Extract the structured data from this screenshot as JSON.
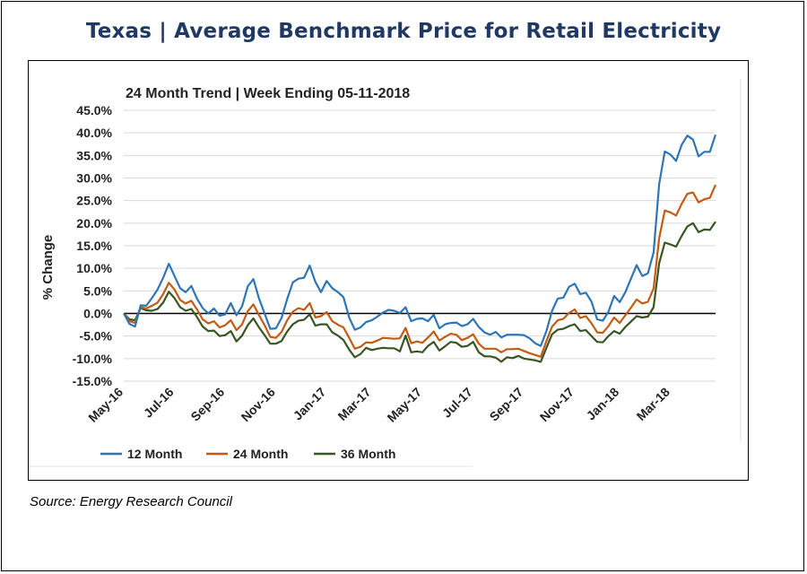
{
  "page": {
    "title": "Texas | Average Benchmark Price for Retail Electricity",
    "source": "Source: Energy Research Council"
  },
  "chart_data": {
    "type": "line",
    "title": "24 Month Trend | Week Ending 05-11-2018",
    "xlabel": "",
    "ylabel": "% Change",
    "ylim": [
      -15,
      45
    ],
    "yticks": [
      -15,
      -10,
      -5,
      0,
      5,
      10,
      15,
      20,
      25,
      30,
      35,
      40,
      45
    ],
    "ytick_labels": [
      "-15.0%",
      "-10.0%",
      "-5.0%",
      "0.0%",
      "5.0%",
      "10.0%",
      "15.0%",
      "20.0%",
      "25.0%",
      "30.0%",
      "35.0%",
      "40.0%",
      "45.0%"
    ],
    "x_tick_labels": [
      "May-16",
      "Jul-16",
      "Sep-16",
      "Nov-16",
      "Jan-17",
      "Mar-17",
      "May-17",
      "Jul-17",
      "Sep-17",
      "Nov-17",
      "Jan-18",
      "Mar-18"
    ],
    "x_tick_weeks": [
      0,
      9,
      18,
      27,
      36,
      44,
      53,
      62,
      71,
      80,
      88,
      97
    ],
    "grid": "horizontal",
    "legend_position": "bottom-left",
    "series": [
      {
        "name": "12 Month",
        "color": "#2e75b6",
        "values": [
          0,
          -2.3,
          -2.9,
          1.8,
          1.7,
          3.4,
          5.3,
          7.9,
          11.0,
          8.3,
          5.6,
          4.7,
          6.1,
          3.3,
          1.2,
          0.0,
          1.1,
          -0.5,
          -0.2,
          2.3,
          -0.4,
          1.6,
          6.0,
          7.6,
          3.3,
          0.0,
          -3.4,
          -3.3,
          -1.0,
          3.2,
          6.9,
          7.7,
          7.9,
          10.6,
          7.0,
          4.7,
          7.2,
          5.6,
          4.7,
          3.6,
          -0.9,
          -3.6,
          -3.1,
          -1.9,
          -1.5,
          -0.7,
          0.2,
          0.8,
          0.6,
          0.1,
          1.4,
          -1.7,
          -1.2,
          -1.1,
          -1.7,
          -0.3,
          -3.3,
          -2.4,
          -2.1,
          -2.0,
          -2.8,
          -2.4,
          -1.2,
          -3.0,
          -4.2,
          -4.7,
          -4.1,
          -5.3,
          -4.7,
          -4.7,
          -4.7,
          -4.8,
          -5.5,
          -6.6,
          -7.2,
          -3.9,
          0.6,
          3.3,
          3.5,
          5.9,
          6.6,
          4.3,
          4.6,
          2.6,
          -1.3,
          -1.6,
          0.4,
          3.9,
          2.5,
          4.7,
          7.7,
          10.7,
          8.3,
          8.9,
          13.5,
          28.6,
          35.9,
          35.2,
          33.8,
          37.4,
          39.4,
          38.5,
          34.8,
          35.8,
          35.8,
          39.6
        ]
      },
      {
        "name": "24 Month",
        "color": "#c55a11",
        "values": [
          0,
          -1.7,
          -2.1,
          1.4,
          1.1,
          1.7,
          2.4,
          4.3,
          6.8,
          5.3,
          3.0,
          2.2,
          2.8,
          0.9,
          -1.3,
          -2.2,
          -1.7,
          -3.1,
          -2.6,
          -1.5,
          -3.7,
          -2.4,
          0.5,
          2.0,
          -0.4,
          -2.6,
          -5.2,
          -5.4,
          -4.1,
          -1.5,
          0.4,
          1.2,
          0.8,
          2.3,
          -0.9,
          -0.6,
          0.3,
          -1.7,
          -2.5,
          -3.1,
          -5.4,
          -7.8,
          -7.4,
          -6.4,
          -6.5,
          -6.0,
          -5.4,
          -5.5,
          -5.6,
          -5.5,
          -3.2,
          -6.6,
          -6.2,
          -6.5,
          -5.3,
          -4.0,
          -6.0,
          -5.2,
          -4.5,
          -4.7,
          -5.9,
          -5.4,
          -4.6,
          -6.7,
          -7.8,
          -7.8,
          -7.8,
          -8.6,
          -7.9,
          -7.9,
          -7.8,
          -8.3,
          -8.8,
          -9.2,
          -9.6,
          -6.1,
          -2.9,
          -1.5,
          -1.2,
          0.1,
          0.9,
          -1.0,
          -0.6,
          -2.2,
          -4.2,
          -4.3,
          -2.8,
          -0.9,
          -2.1,
          -0.4,
          1.3,
          3.1,
          2.2,
          2.6,
          5.5,
          16.6,
          22.8,
          22.4,
          21.7,
          24.3,
          26.5,
          26.8,
          24.6,
          25.3,
          25.6,
          28.5
        ]
      },
      {
        "name": "36 Month",
        "color": "#375623",
        "values": [
          0,
          -1.3,
          -1.5,
          1.2,
          0.7,
          0.6,
          1.0,
          2.4,
          4.8,
          3.4,
          1.4,
          0.6,
          1.0,
          -0.8,
          -2.9,
          -3.9,
          -3.8,
          -5.0,
          -4.8,
          -3.9,
          -6.2,
          -4.9,
          -2.6,
          -1.1,
          -3.1,
          -4.8,
          -6.7,
          -6.7,
          -6.1,
          -4.0,
          -2.4,
          -1.6,
          -1.4,
          -0.2,
          -2.7,
          -2.4,
          -2.4,
          -4.2,
          -4.9,
          -5.9,
          -8.0,
          -9.7,
          -9.0,
          -7.6,
          -8.1,
          -7.8,
          -7.6,
          -7.7,
          -7.7,
          -8.4,
          -4.9,
          -8.6,
          -8.4,
          -8.6,
          -7.2,
          -6.3,
          -8.2,
          -7.3,
          -6.3,
          -6.5,
          -7.4,
          -7.2,
          -6.3,
          -8.6,
          -9.5,
          -9.5,
          -9.8,
          -10.7,
          -9.7,
          -9.9,
          -9.4,
          -10.0,
          -10.2,
          -10.4,
          -10.7,
          -7.6,
          -4.6,
          -3.6,
          -3.4,
          -2.8,
          -2.4,
          -3.9,
          -3.7,
          -5.0,
          -6.3,
          -6.4,
          -5.0,
          -3.9,
          -4.5,
          -3.0,
          -1.8,
          -0.6,
          -0.9,
          -0.7,
          1.4,
          11.1,
          15.7,
          15.3,
          14.8,
          17.2,
          19.3,
          20.0,
          18.0,
          18.6,
          18.5,
          20.3
        ]
      }
    ]
  }
}
